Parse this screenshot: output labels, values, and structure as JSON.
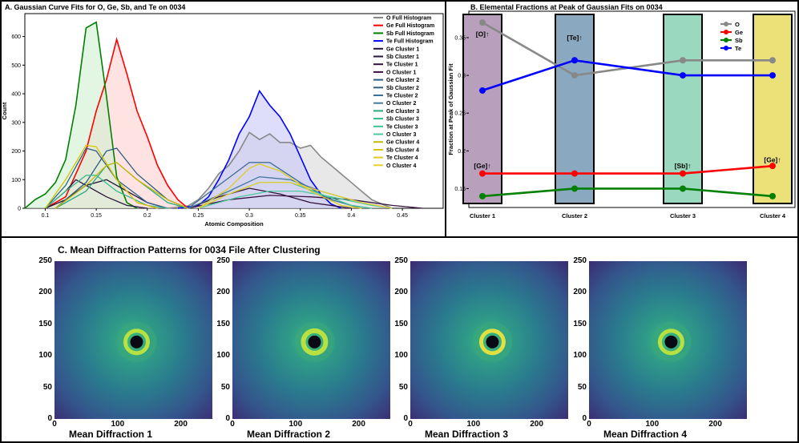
{
  "panelA": {
    "title": "A. Gaussian Curve Fits for O, Ge, Sb, and Te on 0034",
    "chart_data": {
      "type": "area",
      "title": "A. Gaussian Curve Fits for O, Ge, Sb, and Te on 0034",
      "xlabel": "Atomic Composition",
      "ylabel": "Count",
      "xlim": [
        0.08,
        0.49
      ],
      "ylim": [
        0,
        680
      ],
      "xticks": [
        0.1,
        0.15,
        0.2,
        0.25,
        0.3,
        0.35,
        0.4,
        0.45
      ],
      "xtick_labels": [
        "0.1",
        "0.15",
        "0.2",
        "0.25",
        "0.3",
        "0.35",
        "0.4",
        "0.45"
      ],
      "yticks": [
        0,
        100,
        200,
        300,
        400,
        500,
        600
      ],
      "legend_position": "top-right",
      "series": [
        {
          "name": "O Full Histogram",
          "color": "#888888",
          "fill": "#d8d8d8",
          "points": [
            [
              0.22,
              0
            ],
            [
              0.24,
              8
            ],
            [
              0.25,
              30
            ],
            [
              0.26,
              70
            ],
            [
              0.27,
              120
            ],
            [
              0.28,
              150
            ],
            [
              0.29,
              200
            ],
            [
              0.3,
              265
            ],
            [
              0.31,
              240
            ],
            [
              0.32,
              260
            ],
            [
              0.33,
              230
            ],
            [
              0.34,
              230
            ],
            [
              0.35,
              210
            ],
            [
              0.36,
              220
            ],
            [
              0.37,
              180
            ],
            [
              0.38,
              150
            ],
            [
              0.39,
              120
            ],
            [
              0.4,
              90
            ],
            [
              0.41,
              60
            ],
            [
              0.42,
              30
            ],
            [
              0.44,
              0
            ]
          ]
        },
        {
          "name": "Ge Full Histogram",
          "color": "#ff0000",
          "fill": "#ffd0d0",
          "points": [
            [
              0.1,
              0
            ],
            [
              0.12,
              40
            ],
            [
              0.14,
              200
            ],
            [
              0.15,
              340
            ],
            [
              0.16,
              450
            ],
            [
              0.17,
              590
            ],
            [
              0.18,
              470
            ],
            [
              0.19,
              340
            ],
            [
              0.2,
              250
            ],
            [
              0.21,
              150
            ],
            [
              0.22,
              80
            ],
            [
              0.23,
              30
            ],
            [
              0.24,
              0
            ]
          ]
        },
        {
          "name": "Sb Full Histogram",
          "color": "#008000",
          "fill": "#d0f0d0",
          "points": [
            [
              0.08,
              0
            ],
            [
              0.09,
              30
            ],
            [
              0.1,
              50
            ],
            [
              0.11,
              90
            ],
            [
              0.12,
              170
            ],
            [
              0.13,
              360
            ],
            [
              0.14,
              630
            ],
            [
              0.15,
              650
            ],
            [
              0.16,
              390
            ],
            [
              0.17,
              110
            ],
            [
              0.18,
              20
            ],
            [
              0.19,
              0
            ]
          ]
        },
        {
          "name": "Te Full Histogram",
          "color": "#0000ff",
          "fill": "#c8c8f8",
          "points": [
            [
              0.23,
              0
            ],
            [
              0.25,
              10
            ],
            [
              0.26,
              40
            ],
            [
              0.27,
              100
            ],
            [
              0.28,
              170
            ],
            [
              0.29,
              260
            ],
            [
              0.3,
              320
            ],
            [
              0.31,
              410
            ],
            [
              0.32,
              360
            ],
            [
              0.33,
              320
            ],
            [
              0.34,
              260
            ],
            [
              0.35,
              180
            ],
            [
              0.36,
              100
            ],
            [
              0.37,
              50
            ],
            [
              0.38,
              15
            ],
            [
              0.39,
              0
            ]
          ]
        },
        {
          "name": "Ge Cluster 1",
          "color": "#20123a",
          "points": [
            [
              0.1,
              0
            ],
            [
              0.12,
              30
            ],
            [
              0.14,
              80
            ],
            [
              0.16,
              100
            ],
            [
              0.18,
              60
            ],
            [
              0.2,
              20
            ],
            [
              0.22,
              0
            ]
          ]
        },
        {
          "name": "Sb Cluster 1",
          "color": "#2a1540",
          "points": [
            [
              0.1,
              0
            ],
            [
              0.12,
              60
            ],
            [
              0.13,
              100
            ],
            [
              0.14,
              80
            ],
            [
              0.16,
              40
            ],
            [
              0.18,
              10
            ],
            [
              0.2,
              0
            ]
          ]
        },
        {
          "name": "Te Cluster 1",
          "color": "#30103a",
          "points": [
            [
              0.24,
              0
            ],
            [
              0.27,
              40
            ],
            [
              0.3,
              70
            ],
            [
              0.33,
              50
            ],
            [
              0.36,
              20
            ],
            [
              0.4,
              0
            ]
          ]
        },
        {
          "name": "O Cluster 1",
          "color": "#3a1040",
          "points": [
            [
              0.24,
              0
            ],
            [
              0.28,
              30
            ],
            [
              0.32,
              45
            ],
            [
              0.36,
              40
            ],
            [
              0.4,
              30
            ],
            [
              0.44,
              10
            ],
            [
              0.47,
              0
            ]
          ]
        },
        {
          "name": "Ge Cluster 2",
          "color": "#2a5a80",
          "points": [
            [
              0.11,
              0
            ],
            [
              0.14,
              90
            ],
            [
              0.16,
              200
            ],
            [
              0.17,
              210
            ],
            [
              0.19,
              120
            ],
            [
              0.22,
              30
            ],
            [
              0.24,
              0
            ]
          ]
        },
        {
          "name": "Sb Cluster 2",
          "color": "#315f8a",
          "points": [
            [
              0.1,
              0
            ],
            [
              0.12,
              80
            ],
            [
              0.14,
              210
            ],
            [
              0.15,
              200
            ],
            [
              0.17,
              100
            ],
            [
              0.2,
              20
            ],
            [
              0.22,
              0
            ]
          ]
        },
        {
          "name": "Te Cluster 2",
          "color": "#3e6f96",
          "points": [
            [
              0.24,
              0
            ],
            [
              0.27,
              80
            ],
            [
              0.3,
              160
            ],
            [
              0.32,
              160
            ],
            [
              0.35,
              90
            ],
            [
              0.38,
              30
            ],
            [
              0.41,
              0
            ]
          ]
        },
        {
          "name": "O Cluster 2",
          "color": "#467a9e",
          "points": [
            [
              0.24,
              0
            ],
            [
              0.28,
              60
            ],
            [
              0.31,
              110
            ],
            [
              0.34,
              100
            ],
            [
              0.37,
              60
            ],
            [
              0.41,
              20
            ],
            [
              0.44,
              0
            ]
          ]
        },
        {
          "name": "Ge Cluster 3",
          "color": "#2aa882",
          "points": [
            [
              0.11,
              0
            ],
            [
              0.14,
              60
            ],
            [
              0.16,
              150
            ],
            [
              0.17,
              160
            ],
            [
              0.19,
              100
            ],
            [
              0.22,
              20
            ],
            [
              0.24,
              0
            ]
          ]
        },
        {
          "name": "Sb Cluster 3",
          "color": "#35b790",
          "points": [
            [
              0.1,
              0
            ],
            [
              0.12,
              60
            ],
            [
              0.14,
              115
            ],
            [
              0.15,
              115
            ],
            [
              0.17,
              60
            ],
            [
              0.2,
              10
            ],
            [
              0.22,
              0
            ]
          ]
        },
        {
          "name": "Te Cluster 3",
          "color": "#40c098",
          "points": [
            [
              0.25,
              0
            ],
            [
              0.28,
              50
            ],
            [
              0.31,
              90
            ],
            [
              0.34,
              90
            ],
            [
              0.37,
              50
            ],
            [
              0.4,
              10
            ],
            [
              0.42,
              0
            ]
          ]
        },
        {
          "name": "O Cluster 3",
          "color": "#4fc8a0",
          "points": [
            [
              0.25,
              0
            ],
            [
              0.29,
              40
            ],
            [
              0.32,
              60
            ],
            [
              0.35,
              60
            ],
            [
              0.38,
              40
            ],
            [
              0.42,
              10
            ],
            [
              0.44,
              0
            ]
          ]
        },
        {
          "name": "Ge Cluster 4",
          "color": "#c8b800",
          "points": [
            [
              0.11,
              0
            ],
            [
              0.14,
              80
            ],
            [
              0.16,
              150
            ],
            [
              0.17,
              160
            ],
            [
              0.19,
              100
            ],
            [
              0.22,
              30
            ],
            [
              0.24,
              0
            ]
          ]
        },
        {
          "name": "Sb Cluster 4",
          "color": "#d4c400",
          "points": [
            [
              0.1,
              0
            ],
            [
              0.12,
              100
            ],
            [
              0.14,
              220
            ],
            [
              0.15,
              215
            ],
            [
              0.17,
              100
            ],
            [
              0.19,
              20
            ],
            [
              0.21,
              0
            ]
          ]
        },
        {
          "name": "Te Cluster 4",
          "color": "#e0cc20",
          "points": [
            [
              0.25,
              0
            ],
            [
              0.28,
              70
            ],
            [
              0.3,
              140
            ],
            [
              0.31,
              155
            ],
            [
              0.33,
              130
            ],
            [
              0.36,
              60
            ],
            [
              0.39,
              10
            ],
            [
              0.41,
              0
            ]
          ]
        },
        {
          "name": "O Cluster 4",
          "color": "#e8d030",
          "points": [
            [
              0.25,
              0
            ],
            [
              0.28,
              50
            ],
            [
              0.31,
              90
            ],
            [
              0.34,
              90
            ],
            [
              0.37,
              60
            ],
            [
              0.41,
              20
            ],
            [
              0.44,
              0
            ]
          ]
        }
      ]
    }
  },
  "panelB": {
    "title": "B. Elemental Fractions at Peak of Gaussian Fits on 0034",
    "chart_data": {
      "type": "line",
      "title": "B. Elemental Fractions at Peak of Gaussian Fits on 0034",
      "ylabel": "Fraction at Peak of Gaussian Fit",
      "xlabel": "",
      "categories": [
        "Cluster 1",
        "Cluster 2",
        "Cluster 3",
        "Cluster 4"
      ],
      "ylim": [
        0.125,
        0.385
      ],
      "yticks": [
        0.15,
        0.2,
        0.25,
        0.3,
        0.35
      ],
      "ytick_labels": [
        "0.15",
        "0.2",
        "0.25",
        "0.3",
        "0.35"
      ],
      "legend_position": "top-right",
      "series": [
        {
          "name": "O",
          "color": "#888888",
          "values": [
            0.37,
            0.3,
            0.32,
            0.32
          ]
        },
        {
          "name": "Ge",
          "color": "#ff0000",
          "values": [
            0.17,
            0.17,
            0.17,
            0.18
          ]
        },
        {
          "name": "Sb",
          "color": "#008000",
          "values": [
            0.14,
            0.15,
            0.15,
            0.14
          ]
        },
        {
          "name": "Te",
          "color": "#0000ff",
          "values": [
            0.28,
            0.32,
            0.3,
            0.3
          ]
        }
      ],
      "bars": [
        {
          "category": "Cluster 1",
          "color": "#b8a0bc"
        },
        {
          "category": "Cluster 2",
          "color": "#8aa8c0"
        },
        {
          "category": "Cluster 3",
          "color": "#9ad8c0"
        },
        {
          "category": "Cluster 4",
          "color": "#ece078"
        }
      ],
      "annotations": [
        {
          "text": "[O]↑",
          "category": "Cluster 1",
          "y": 0.355
        },
        {
          "text": "[Ge]↑",
          "category": "Cluster 1",
          "y": 0.18
        },
        {
          "text": "[Te]↑",
          "category": "Cluster 2",
          "y": 0.35
        },
        {
          "text": "[Sb]↑",
          "category": "Cluster 3",
          "y": 0.18
        },
        {
          "text": "[Ge]↑",
          "category": "Cluster 4",
          "y": 0.188
        }
      ]
    }
  },
  "panelC": {
    "title": "C. Mean Diffraction Patterns for 0034 File After Clustering",
    "axis_ticks_y": [
      "250",
      "200",
      "150",
      "100",
      "50",
      "0"
    ],
    "axis_ticks_x": [
      "0",
      "100",
      "200"
    ],
    "images": [
      {
        "label": "Mean Diffraction 1"
      },
      {
        "label": "Mean Diffraction 2"
      },
      {
        "label": "Mean Diffraction 3"
      },
      {
        "label": "Mean Diffraction 4"
      }
    ]
  },
  "colors": {
    "border": "#000000",
    "viridis_dark": "#3b2a72",
    "viridis_mid": "#2a7b8e",
    "viridis_light": "#3dbb78",
    "viridis_bright": "#b8e040"
  }
}
